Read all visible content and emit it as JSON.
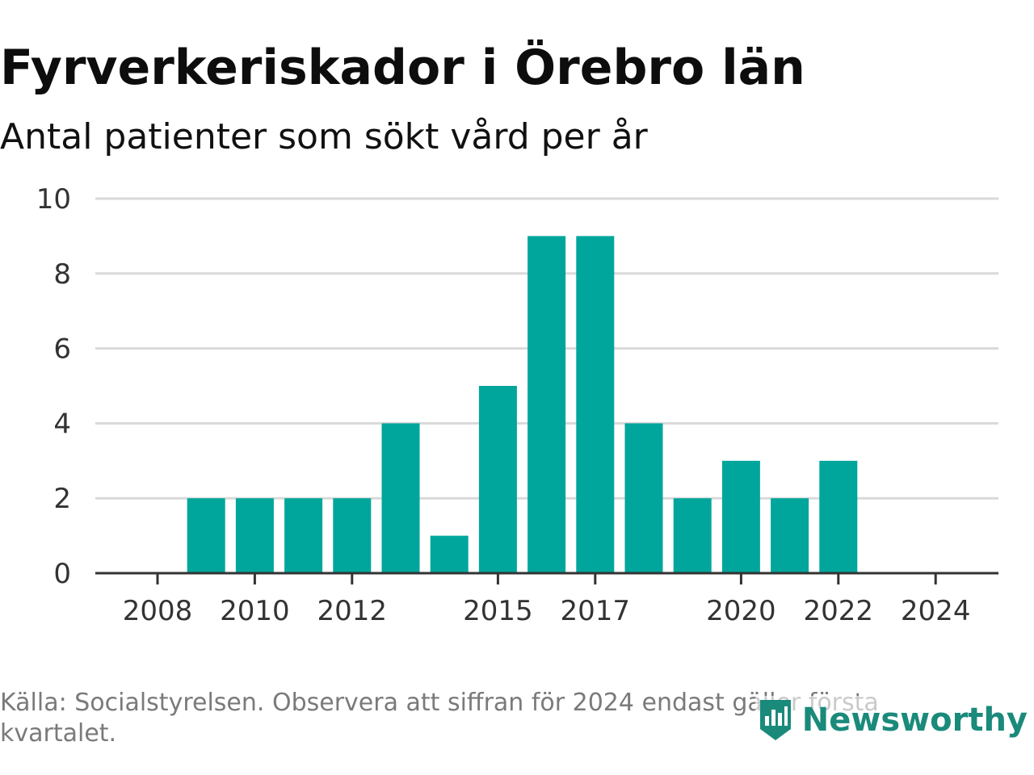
{
  "title": "Fyrverkeriskador i Örebro län",
  "subtitle": "Antal patienter som sökt vård per år",
  "source": "Källa: Socialstyrelsen. Observera att siffran för 2024 endast gäller första kvartalet.",
  "brand": {
    "name": "Newsworthy",
    "icon": "newsworthy-logo-icon",
    "color": "#1a8a7b"
  },
  "colors": {
    "bar": "#00a69b",
    "grid": "#d9d9d9",
    "axis": "#333333"
  },
  "chart_data": {
    "type": "bar",
    "title": "Fyrverkeriskador i Örebro län",
    "subtitle": "Antal patienter som sökt vård per år",
    "x": [
      2008,
      2009,
      2010,
      2011,
      2012,
      2013,
      2014,
      2015,
      2016,
      2017,
      2018,
      2019,
      2020,
      2021,
      2022,
      2023,
      2024
    ],
    "values": [
      0,
      2,
      2,
      2,
      2,
      4,
      1,
      5,
      9,
      9,
      4,
      2,
      3,
      2,
      3,
      0,
      0
    ],
    "x_tick_labels": [
      "2008",
      "2010",
      "2012",
      "2015",
      "2017",
      "2020",
      "2022",
      "2024"
    ],
    "y_ticks": [
      0,
      2,
      4,
      6,
      8,
      10
    ],
    "ylim": [
      0,
      10
    ],
    "xlabel": "",
    "ylabel": "",
    "grid": true,
    "legend": "none"
  }
}
